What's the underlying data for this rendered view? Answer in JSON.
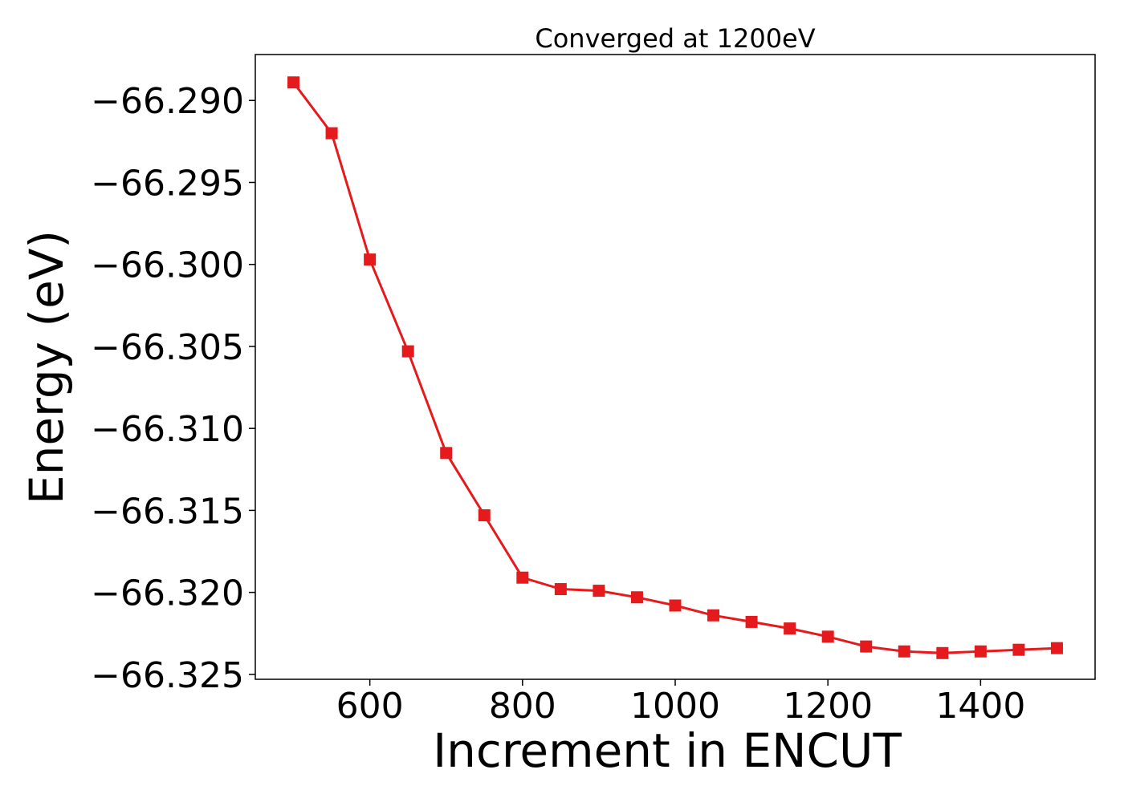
{
  "chart_data": {
    "type": "line",
    "title": "Converged at 1200eV",
    "xlabel": "Increment in ENCUT",
    "ylabel": "Energy (eV)",
    "xlim": [
      450,
      1550
    ],
    "ylim": [
      -66.3253,
      -66.2872
    ],
    "xticks": [
      600,
      800,
      1000,
      1200,
      1400
    ],
    "xtick_labels": [
      "600",
      "800",
      "1000",
      "1200",
      "1400"
    ],
    "yticks": [
      -66.29,
      -66.295,
      -66.3,
      -66.305,
      -66.31,
      -66.315,
      -66.32,
      -66.325
    ],
    "ytick_labels": [
      "−66.290",
      "−66.295",
      "−66.300",
      "−66.305",
      "−66.310",
      "−66.315",
      "−66.320",
      "−66.325"
    ],
    "grid": false,
    "series": [
      {
        "color": "#e41a1c",
        "marker": "square",
        "x": [
          500,
          550,
          600,
          650,
          700,
          750,
          800,
          850,
          900,
          950,
          1000,
          1050,
          1100,
          1150,
          1200,
          1250,
          1300,
          1350,
          1400,
          1450,
          1500
        ],
        "y": [
          -66.2889,
          -66.292,
          -66.2997,
          -66.3053,
          -66.3115,
          -66.3153,
          -66.3191,
          -66.3198,
          -66.3199,
          -66.3203,
          -66.3208,
          -66.3214,
          -66.3218,
          -66.3222,
          -66.3227,
          -66.3233,
          -66.3236,
          -66.3237,
          -66.3236,
          -66.3235,
          -66.3234
        ]
      }
    ]
  }
}
